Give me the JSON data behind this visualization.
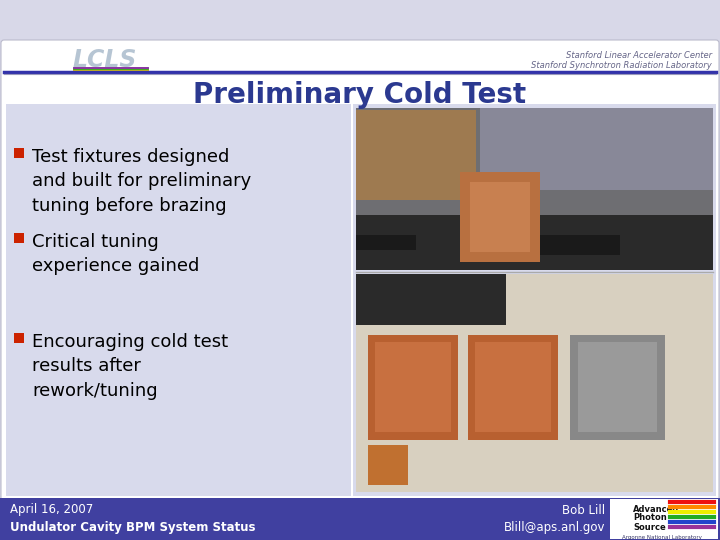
{
  "title": "Preliminary Cold Test",
  "title_color": "#2B3990",
  "title_fontsize": 20,
  "bg_color": "#FFFFFF",
  "slide_bg": "#D8D8E8",
  "footer_bg": "#4040A0",
  "footer_text_color": "#FFFFFF",
  "footer_left_line1": "April 16, 2007",
  "footer_left_line2": "Undulator Cavity BPM System Status",
  "footer_right_line1": "Bob Lill",
  "footer_right_line2": "Blill@aps.anl.gov",
  "bullet_color": "#CC2200",
  "bullet_text_color": "#000000",
  "bullet_fontsize": 13,
  "bullets": [
    "Test fixtures designed\nand built for preliminary\ntuning before brazing",
    "Critical tuning\nexperience gained",
    "Encouraging cold test\nresults after\nrework/tuning"
  ],
  "stanford_line1": "Stanford Linear Accelerator Center",
  "stanford_line2": "Stanford Synchrotron Radiation Laboratory",
  "header_divider_color1": "#3333AA",
  "header_divider_color2": "#9999BB"
}
